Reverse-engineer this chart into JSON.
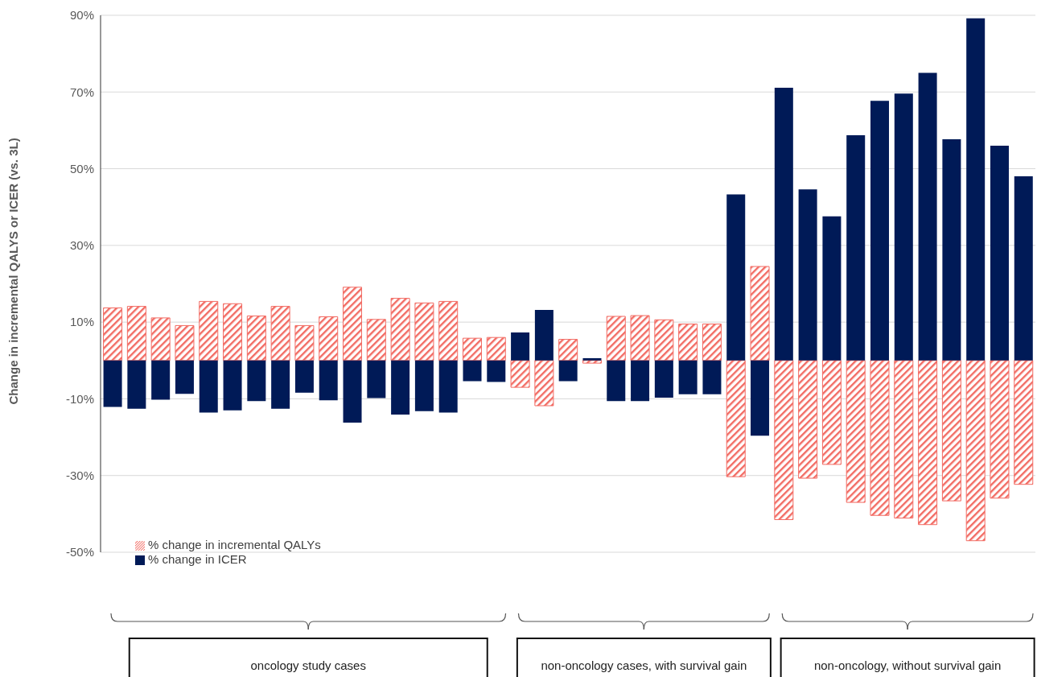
{
  "chart_data": {
    "type": "bar",
    "ylabel": "Change in incremental QALYS or ICER (vs. 3L)",
    "categories": [
      null,
      null,
      null,
      null,
      null,
      null,
      null,
      null,
      null,
      null,
      null,
      null,
      null,
      null,
      null,
      null,
      null,
      null,
      null,
      null,
      null,
      null,
      null,
      null,
      null,
      null,
      null,
      null,
      null,
      null,
      null,
      null,
      null,
      null,
      null,
      null,
      null,
      null,
      null
    ],
    "series": [
      {
        "name": "% change in incremental QALYs",
        "color": "#f26b63",
        "values": [
          13.7,
          14.1,
          11.1,
          9.1,
          15.4,
          14.8,
          11.6,
          14.1,
          9.1,
          11.4,
          19.1,
          10.7,
          16.2,
          15.0,
          15.4,
          5.8,
          6.0,
          -7.0,
          -11.8,
          5.5,
          -0.7,
          11.5,
          11.7,
          10.6,
          9.5,
          9.5,
          -30.3,
          24.5,
          -41.5,
          -30.7,
          -27.1,
          -37.0,
          -40.4,
          -41.1,
          -42.8,
          -36.6,
          -47.0,
          -35.9,
          -32.3
        ]
      },
      {
        "name": "% change in ICER",
        "color": "#001a57",
        "values": [
          -12.1,
          -12.6,
          -10.2,
          -8.7,
          -13.6,
          -13.0,
          -10.6,
          -12.6,
          -8.4,
          -10.4,
          -16.2,
          -9.8,
          -14.1,
          -13.2,
          -13.6,
          -5.4,
          -5.6,
          7.3,
          13.2,
          -5.4,
          0.6,
          -10.6,
          -10.6,
          -9.7,
          -8.8,
          -8.8,
          43.3,
          -19.6,
          71.1,
          44.6,
          37.6,
          58.7,
          67.7,
          69.6,
          75.0,
          57.7,
          89.2,
          56.0,
          48.0
        ]
      }
    ],
    "stacked": true,
    "ylim": [
      -50,
      90
    ],
    "yticks": [
      {
        "value": -50,
        "label": "-50%"
      },
      {
        "value": -30,
        "label": "-30%"
      },
      {
        "value": -10,
        "label": "-10%"
      },
      {
        "value": 10,
        "label": "10%"
      },
      {
        "value": 30,
        "label": "30%"
      },
      {
        "value": 50,
        "label": "50%"
      },
      {
        "value": 70,
        "label": "70%"
      },
      {
        "value": 90,
        "label": "90%"
      }
    ],
    "grid": "y",
    "legend": "bottom left",
    "annotations": [
      "oncology study cases",
      "non-oncology cases, with survival gain",
      "non-oncology, without survival gain"
    ]
  }
}
